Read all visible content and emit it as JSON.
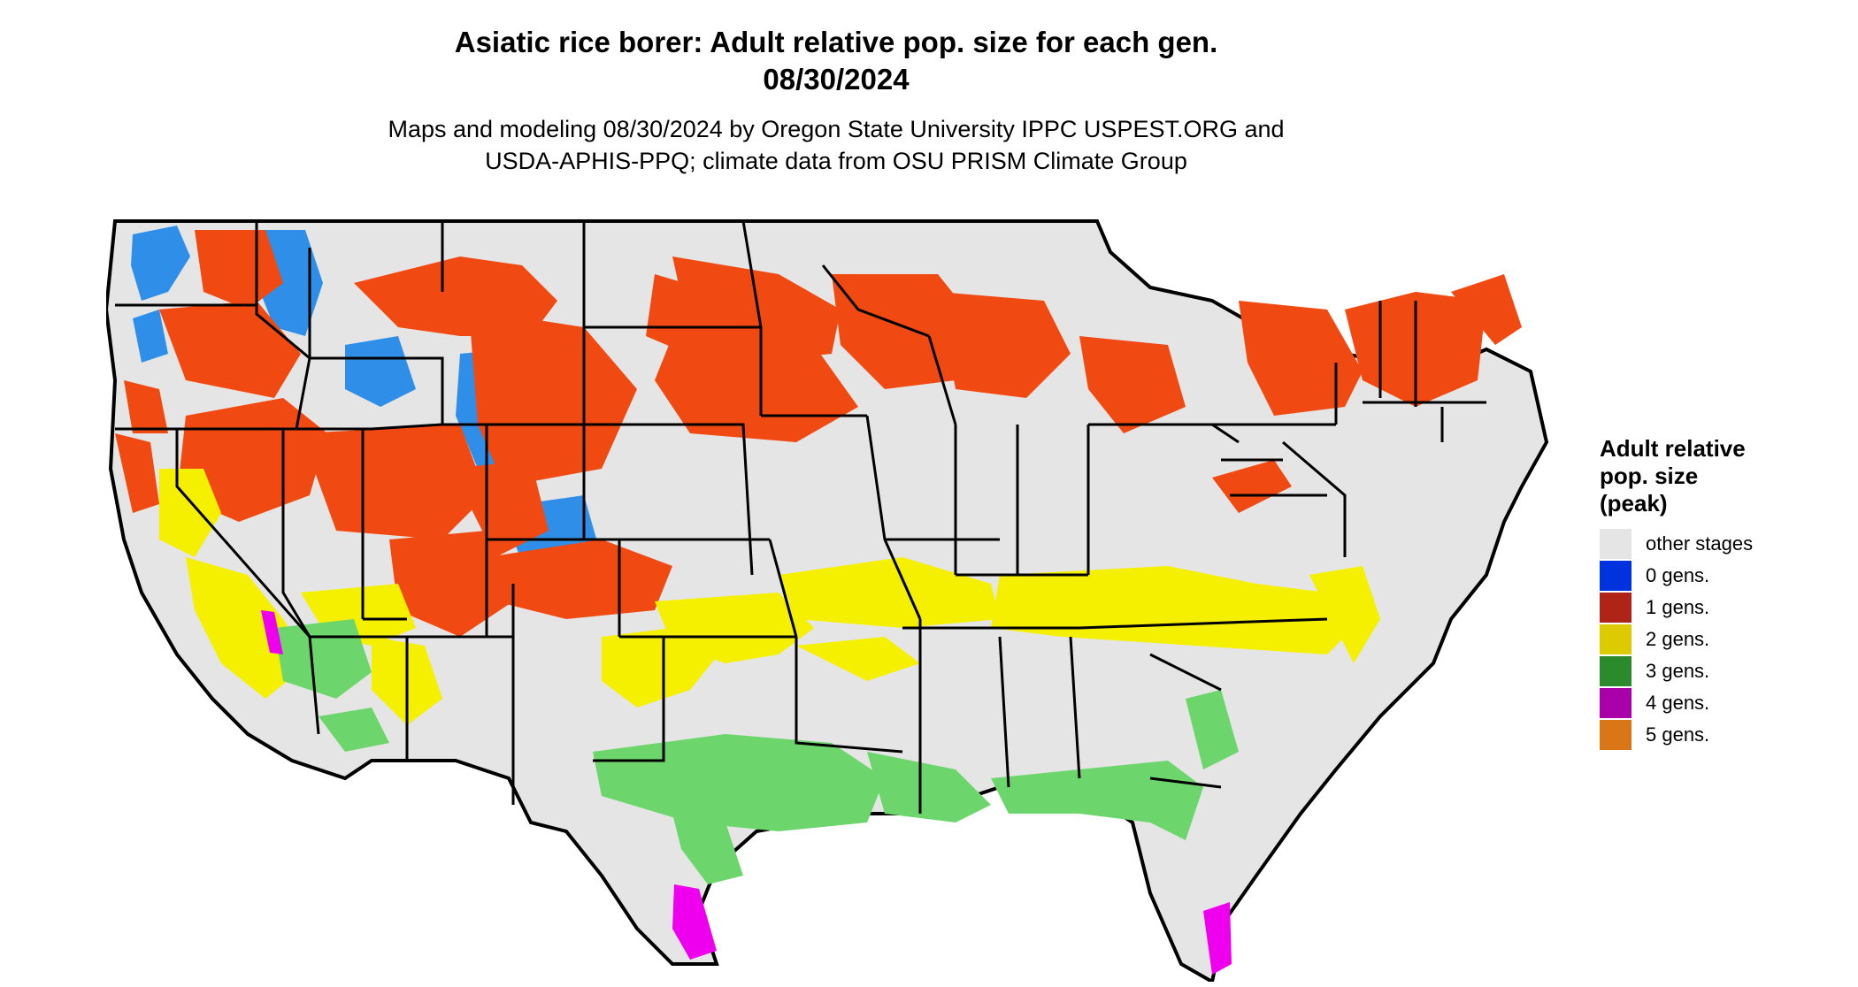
{
  "title": {
    "line1": "Asiatic rice borer: Adult relative pop. size for each gen.",
    "line2": "08/30/2024"
  },
  "subtitle": {
    "line1": "Maps and modeling 08/30/2024 by Oregon State University IPPC USPEST.ORG and",
    "line2": "USDA-APHIS-PPQ; climate data from OSU PRISM Climate Group"
  },
  "legend": {
    "title_lines": [
      "Adult relative",
      "pop. size",
      "(peak)"
    ],
    "items": [
      {
        "label": "other stages",
        "color": "#e5e5e5"
      },
      {
        "label": "0 gens.",
        "color": "#0033dd"
      },
      {
        "label": "1 gens.",
        "color": "#b02418"
      },
      {
        "label": "2 gens.",
        "color": "#dccb00"
      },
      {
        "label": "3 gens.",
        "color": "#2b8a2b"
      },
      {
        "label": "4 gens.",
        "color": "#aa00aa"
      },
      {
        "label": "5 gens.",
        "color": "#d97618"
      }
    ]
  },
  "map_colors": {
    "background": "#e5e5e5",
    "state_border": "#000000",
    "zero_gen": "#2f8fe8",
    "one_gen": "#f04a12",
    "two_gen": "#f5f000",
    "three_gen": "#6cd66c",
    "four_gen": "#ee00ee"
  }
}
